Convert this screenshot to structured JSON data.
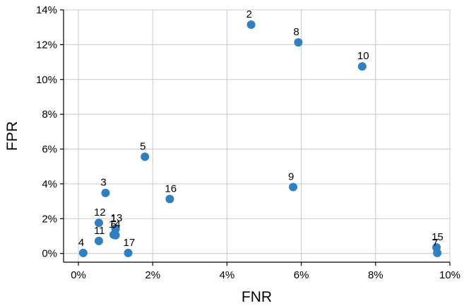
{
  "chart_data": {
    "type": "scatter",
    "title": "",
    "xlabel": "FNR",
    "ylabel": "FPR",
    "xlim": [
      -0.004,
      0.1
    ],
    "ylim": [
      -0.005,
      0.14
    ],
    "x_ticks": [
      0,
      0.02,
      0.04,
      0.06,
      0.08,
      0.1
    ],
    "x_tick_labels": [
      "0%",
      "2%",
      "4%",
      "6%",
      "8%",
      "10%"
    ],
    "y_ticks": [
      0,
      0.02,
      0.04,
      0.06,
      0.08,
      0.1,
      0.12,
      0.14
    ],
    "y_tick_labels": [
      "0%",
      "2%",
      "4%",
      "6%",
      "8%",
      "10%",
      "12%",
      "14%"
    ],
    "grid": true,
    "marker_color": "#2f7fc1",
    "points": [
      {
        "label": "1",
        "x": 0.01,
        "y": 0.014
      },
      {
        "label": "2",
        "x": 0.0465,
        "y": 0.1315
      },
      {
        "label": "3",
        "x": 0.0073,
        "y": 0.0348
      },
      {
        "label": "4",
        "x": 0.0013,
        "y": 0.0003
      },
      {
        "label": "5",
        "x": 0.0179,
        "y": 0.0556
      },
      {
        "label": "6",
        "x": 0.01,
        "y": 0.0105
      },
      {
        "label": "7",
        "x": 0.0966,
        "y": 0.0003
      },
      {
        "label": "8",
        "x": 0.0592,
        "y": 0.1213
      },
      {
        "label": "9",
        "x": 0.0578,
        "y": 0.0382
      },
      {
        "label": "10",
        "x": 0.0764,
        "y": 0.1075
      },
      {
        "label": "11",
        "x": 0.0055,
        "y": 0.0072
      },
      {
        "label": "12",
        "x": 0.0055,
        "y": 0.0176
      },
      {
        "label": "13",
        "x": 0.01,
        "y": 0.0144
      },
      {
        "label": "14",
        "x": 0.0095,
        "y": 0.0108
      },
      {
        "label": "15",
        "x": 0.0964,
        "y": 0.0035
      },
      {
        "label": "16",
        "x": 0.0246,
        "y": 0.0313
      },
      {
        "label": "17",
        "x": 0.0134,
        "y": 0.0003
      }
    ]
  }
}
